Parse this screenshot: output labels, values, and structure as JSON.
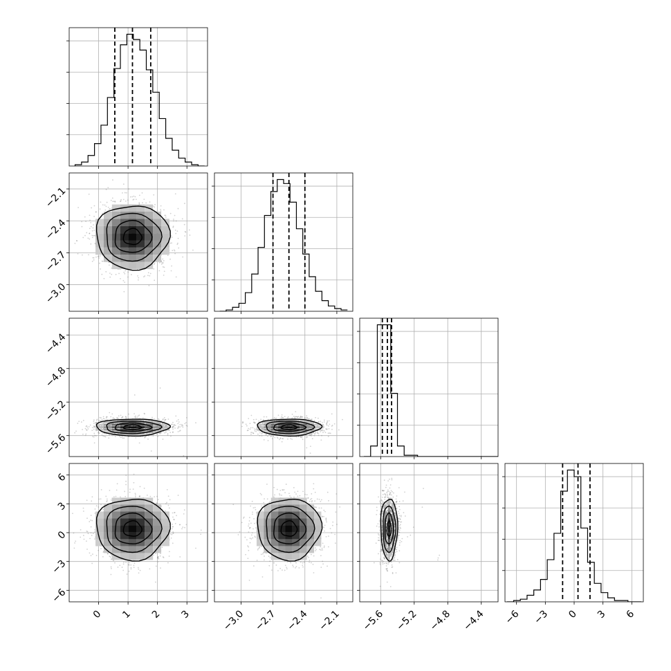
{
  "chart_data": {
    "type": "corner",
    "title": "",
    "grid": true,
    "dimensions": [
      {
        "label": "",
        "range": [
          -1,
          3.7
        ],
        "ticks": [
          0,
          1,
          2,
          3
        ],
        "tick_labels": [
          "0",
          "1",
          "2",
          "3"
        ],
        "mean": 1.15,
        "sd": 0.62,
        "quantiles": [
          0.55,
          1.15,
          1.77
        ]
      },
      {
        "label": "",
        "range": [
          -3.25,
          -1.95
        ],
        "ticks": [
          -3.0,
          -2.7,
          -2.4,
          -2.1
        ],
        "tick_labels": [
          "−3.0",
          "−2.7",
          "−2.4",
          "−2.1"
        ],
        "mean": -2.55,
        "sd": 0.15,
        "quantiles": [
          -2.7,
          -2.55,
          -2.4
        ]
      },
      {
        "label": "",
        "range": [
          -5.85,
          -4.2
        ],
        "ticks": [
          -5.6,
          -5.2,
          -4.8,
          -4.4
        ],
        "tick_labels": [
          "−5.6",
          "−5.2",
          "−4.8",
          "−4.4"
        ],
        "mean": -5.5,
        "sd": 0.05,
        "quantiles": [
          -5.58,
          -5.52,
          -5.47
        ]
      },
      {
        "label": "",
        "range": [
          -7.2,
          7.2
        ],
        "ticks": [
          -6,
          -3,
          0,
          3,
          6
        ],
        "tick_labels": [
          "−6",
          "−3",
          "0",
          "3",
          "6"
        ],
        "mean": 0.4,
        "sd": 1.6,
        "quantiles": [
          -1.2,
          0.4,
          1.65
        ]
      }
    ],
    "histograms": [
      {
        "edges_range": [
          -0.8,
          3.6
        ],
        "bins": 20,
        "counts": [
          1,
          3,
          8,
          17,
          31,
          52,
          74,
          92,
          100,
          96,
          88,
          73,
          56,
          36,
          21,
          12,
          6,
          3,
          1,
          0
        ]
      },
      {
        "edges_range": [
          -3.2,
          -2.0
        ],
        "bins": 20,
        "counts": [
          0,
          1,
          3,
          6,
          14,
          28,
          48,
          72,
          90,
          99,
          96,
          82,
          62,
          43,
          26,
          15,
          8,
          4,
          2,
          1
        ]
      },
      {
        "edges_range": [
          -5.8,
          -4.2
        ],
        "bins": 20,
        "counts": [
          0,
          8,
          100,
          100,
          48,
          8,
          1,
          1,
          0,
          0,
          0,
          0,
          0,
          0,
          0,
          0,
          0,
          0,
          0,
          0
        ]
      },
      {
        "edges_range": [
          -7.0,
          7.0
        ],
        "bins": 20,
        "counts": [
          0,
          1,
          2,
          5,
          9,
          17,
          32,
          52,
          84,
          100,
          95,
          56,
          30,
          14,
          7,
          3,
          1,
          1,
          0,
          0
        ]
      }
    ],
    "correlations": {
      "1,0": 0.0,
      "2,0": 0.0,
      "2,1": 0.0,
      "3,0": 0.0,
      "3,1": 0.0,
      "3,2": 0.0
    }
  }
}
